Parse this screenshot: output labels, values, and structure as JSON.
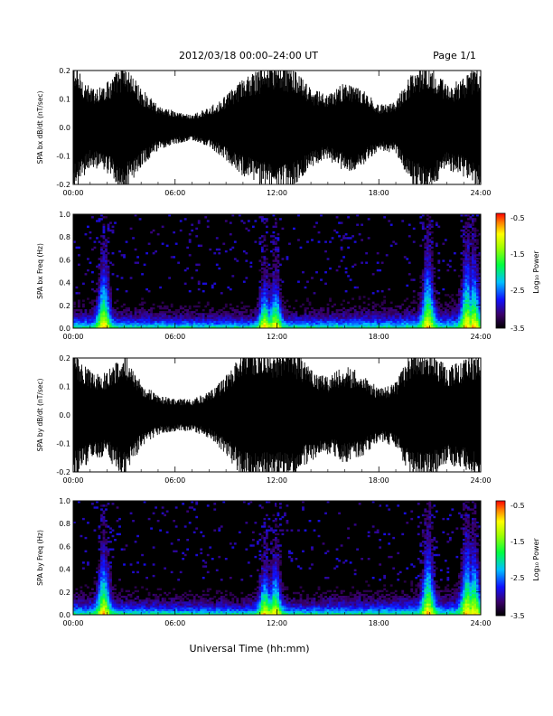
{
  "header": {
    "title": "2012/03/18   00:00–24:00 UT",
    "page": "Page 1/1"
  },
  "xlabel": "Universal Time (hh:mm)",
  "x_ticks": [
    "00:00",
    "06:00",
    "12:00",
    "18:00",
    "24:00"
  ],
  "colorbar": {
    "label": "Log₁₀ Power",
    "ticks": [
      "-0.5",
      "-1.5",
      "-2.5",
      "-3.5"
    ]
  },
  "chart_data": [
    {
      "type": "line",
      "title": "",
      "ylabel": "SPA bx dB/dt (nT/sec)",
      "xlabel": "Universal Time (hh:mm)",
      "xlim": [
        0,
        24
      ],
      "ylim": [
        -0.2,
        0.2
      ],
      "yticks": [
        "-0.2",
        "-0.1",
        "0.0",
        "0.1",
        "0.2"
      ],
      "envelope_hours": [
        0,
        1,
        2,
        3,
        4,
        5,
        6,
        7,
        8,
        9,
        10,
        11,
        12,
        13,
        14,
        15,
        16,
        17,
        18,
        19,
        20,
        21,
        22,
        23,
        24
      ],
      "envelope_abs": [
        0.2,
        0.12,
        0.14,
        0.2,
        0.12,
        0.07,
        0.05,
        0.04,
        0.06,
        0.1,
        0.15,
        0.18,
        0.2,
        0.18,
        0.12,
        0.1,
        0.14,
        0.12,
        0.07,
        0.08,
        0.18,
        0.2,
        0.13,
        0.15,
        0.2
      ]
    },
    {
      "type": "heatmap",
      "title": "",
      "ylabel": "SPA bx Freq (Hz)",
      "xlim": [
        0,
        24
      ],
      "ylim": [
        0,
        1.0
      ],
      "yticks": [
        "0.0",
        "0.2",
        "0.4",
        "0.6",
        "0.8",
        "1.0"
      ],
      "colorbar_range": [
        -3.5,
        -0.5
      ],
      "activity_bursts": [
        {
          "time": 1.8,
          "max_freq": 0.85
        },
        {
          "time": 11.3,
          "max_freq": 0.55
        },
        {
          "time": 11.9,
          "max_freq": 0.6
        },
        {
          "time": 20.9,
          "max_freq": 0.95
        },
        {
          "time": 23.2,
          "max_freq": 1.0
        },
        {
          "time": 23.6,
          "max_freq": 0.9
        }
      ]
    },
    {
      "type": "line",
      "title": "",
      "ylabel": "SPA by dB/dt (nT/sec)",
      "xlabel": "Universal Time (hh:mm)",
      "xlim": [
        0,
        24
      ],
      "ylim": [
        -0.2,
        0.2
      ],
      "yticks": [
        "-0.2",
        "-0.1",
        "0.0",
        "0.1",
        "0.2"
      ],
      "envelope_hours": [
        0,
        1,
        2,
        3,
        4,
        5,
        6,
        7,
        8,
        9,
        10,
        11,
        12,
        13,
        14,
        15,
        16,
        17,
        18,
        19,
        20,
        21,
        22,
        23,
        24
      ],
      "envelope_abs": [
        0.2,
        0.14,
        0.13,
        0.2,
        0.1,
        0.06,
        0.05,
        0.05,
        0.07,
        0.12,
        0.2,
        0.2,
        0.2,
        0.2,
        0.14,
        0.12,
        0.15,
        0.13,
        0.08,
        0.1,
        0.2,
        0.2,
        0.15,
        0.17,
        0.2
      ]
    },
    {
      "type": "heatmap",
      "title": "",
      "ylabel": "SPA by Freq (Hz)",
      "xlim": [
        0,
        24
      ],
      "ylim": [
        0,
        1.0
      ],
      "yticks": [
        "0.0",
        "0.2",
        "0.4",
        "0.6",
        "0.8",
        "1.0"
      ],
      "colorbar_range": [
        -3.5,
        -0.5
      ],
      "activity_bursts": [
        {
          "time": 1.8,
          "max_freq": 0.85
        },
        {
          "time": 11.3,
          "max_freq": 0.6
        },
        {
          "time": 11.9,
          "max_freq": 0.65
        },
        {
          "time": 20.9,
          "max_freq": 0.95
        },
        {
          "time": 23.2,
          "max_freq": 1.0
        },
        {
          "time": 23.6,
          "max_freq": 0.9
        }
      ]
    }
  ]
}
